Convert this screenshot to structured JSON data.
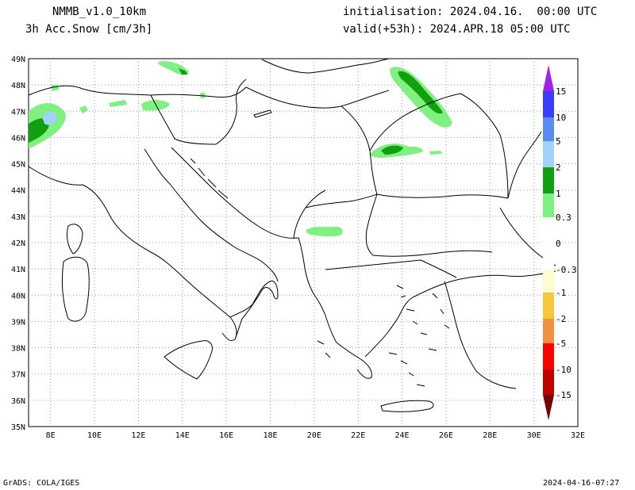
{
  "header": {
    "model": "NMMB_v1.0_10km",
    "field": "3h Acc.Snow [cm/3h]",
    "init": "initialisation: 2024.04.16.  00:00 UTC",
    "valid": "valid(+53h): 2024.APR.18 05:00 UTC"
  },
  "footer": {
    "credit": "GrADS: COLA/IGES",
    "timestamp": "2024-04-16-07:27"
  },
  "map": {
    "lon_min": 7,
    "lon_max": 32,
    "lat_min": 35,
    "lat_max": 49,
    "x_ticks": [
      "8E",
      "10E",
      "12E",
      "14E",
      "16E",
      "18E",
      "20E",
      "22E",
      "24E",
      "26E",
      "28E",
      "30E",
      "32E"
    ],
    "y_ticks": [
      "35N",
      "36N",
      "37N",
      "38N",
      "39N",
      "40N",
      "41N",
      "42N",
      "43N",
      "44N",
      "45N",
      "46N",
      "47N",
      "48N",
      "49N"
    ],
    "snow_areas": [
      {
        "name": "alps-west",
        "level": "0.3",
        "lon": 7.8,
        "lat": 46.2
      },
      {
        "name": "alps-west-core",
        "level": "1",
        "lon": 7.6,
        "lat": 46.1
      },
      {
        "name": "alps-west-peak",
        "level": "2",
        "lon": 8.0,
        "lat": 46.7
      },
      {
        "name": "carpathians-north",
        "level": "1",
        "lon": 25.0,
        "lat": 47.6
      },
      {
        "name": "carpathians-south",
        "level": "1",
        "lon": 24.0,
        "lat": 45.5
      },
      {
        "name": "balkans-albania",
        "level": "0.3",
        "lon": 20.6,
        "lat": 42.4
      },
      {
        "name": "alps-austria",
        "level": "0.3",
        "lon": 13.0,
        "lat": 47.0
      },
      {
        "name": "tatra",
        "level": "0.3",
        "lon": 14.0,
        "lat": 48.6
      }
    ]
  },
  "colorbar": {
    "labels": [
      "15",
      "10",
      "5",
      "2",
      "1",
      "0.3",
      "0",
      "-0.3",
      "-1",
      "-2",
      "-5",
      "-10",
      "-15"
    ],
    "colors": {
      "purple": "#a020f0",
      "blue_deep": "#3c3cff",
      "blue_mid": "#5a8cf0",
      "blue_light": "#a0d2fa",
      "green_dark": "#10a010",
      "green_light": "#80f080",
      "white": "#ffffff",
      "cream": "#fffbd0",
      "yellow": "#f5c83c",
      "orange": "#f09040",
      "red": "#ff0000",
      "dark_red": "#c00000",
      "maroon": "#780000"
    }
  }
}
